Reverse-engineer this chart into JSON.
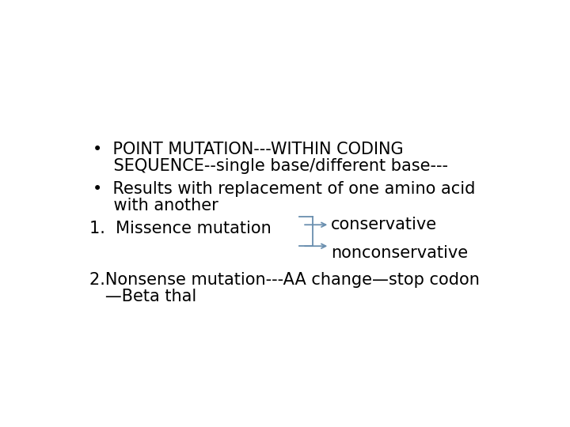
{
  "background_color": "#ffffff",
  "text_color": "#000000",
  "bracket_color": "#6a8faf",
  "bullet1_line1": "•  POINT MUTATION---WITHIN CODING",
  "bullet1_line2": "    SEQUENCE--single base/different base---",
  "bullet2_line1": "•  Results with replacement of one amino acid",
  "bullet2_line2": "    with another",
  "item1_left": "1.  Missence mutation",
  "item1_right1": "conservative",
  "item1_right2": "nonconservative",
  "item2_line1": "2.Nonsense mutation---AA change—stop codon",
  "item2_line2": "   —Beta thal",
  "fontsize": 15
}
